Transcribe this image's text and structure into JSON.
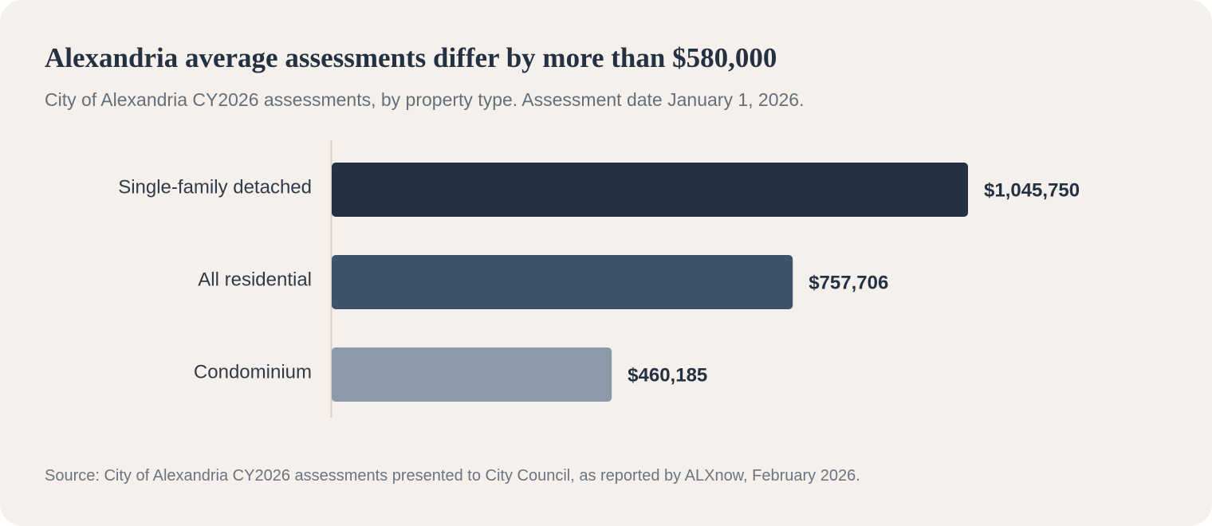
{
  "title": "Alexandria average assessments differ by more than $580,000",
  "subtitle": "City of Alexandria CY2026 assessments, by property type. Assessment date January 1, 2026.",
  "source": "Source: City of Alexandria CY2026 assessments presented to City Council, as reported by ALXnow, February 2026.",
  "colors": {
    "background": "#f5f0eb",
    "axis": "#d9cec5",
    "bars": [
      "#233142",
      "#3e5268",
      "#8a9aa8"
    ]
  },
  "chart_data": {
    "type": "bar",
    "orientation": "horizontal",
    "categories": [
      "Single-family detached",
      "All residential",
      "Condominium"
    ],
    "values": [
      1045750,
      757706,
      460185
    ],
    "value_labels": [
      "$1,045,750",
      "$757,706",
      "$460,185"
    ],
    "title": "Alexandria average assessments differ by more than $580,000",
    "xlabel": "",
    "ylabel": "",
    "grid": false,
    "legend": "none"
  }
}
